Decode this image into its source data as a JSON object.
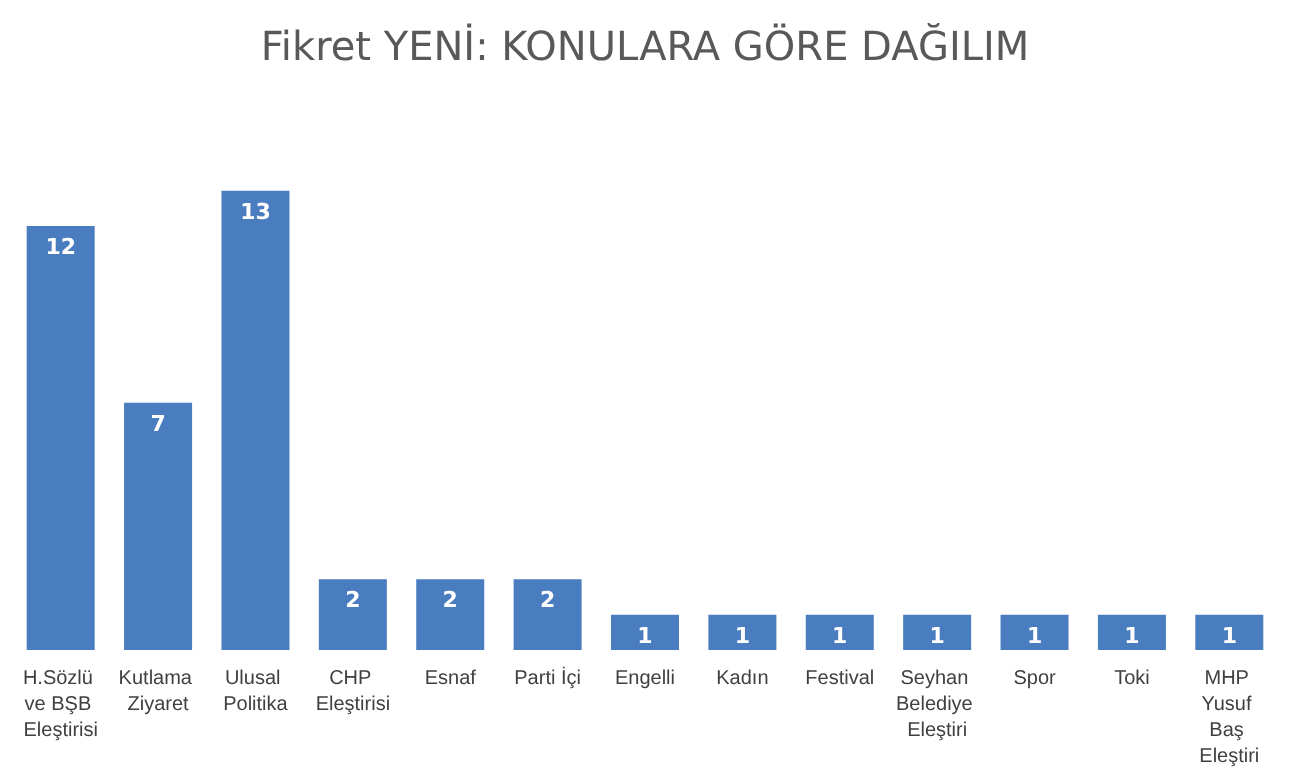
{
  "chart_data": {
    "type": "bar",
    "title": "Fikret YENİ: KONULARA GÖRE DAĞILIM",
    "categories": [
      "H.Sözlü ve BŞB Eleştirisi",
      "Kutlama Ziyaret",
      "Ulusal Politika",
      "CHP Eleştirisi",
      "Esnaf",
      "Parti İçi",
      "Engelli",
      "Kadın",
      "Festival",
      "Seyhan Belediye Eleştiri",
      "Spor",
      "Toki",
      "MHP Yusuf Baş Eleştiri"
    ],
    "values": [
      12,
      7,
      13,
      2,
      2,
      2,
      1,
      1,
      1,
      1,
      1,
      1,
      1
    ],
    "color": "#4a7cc0",
    "data_labels": true
  }
}
